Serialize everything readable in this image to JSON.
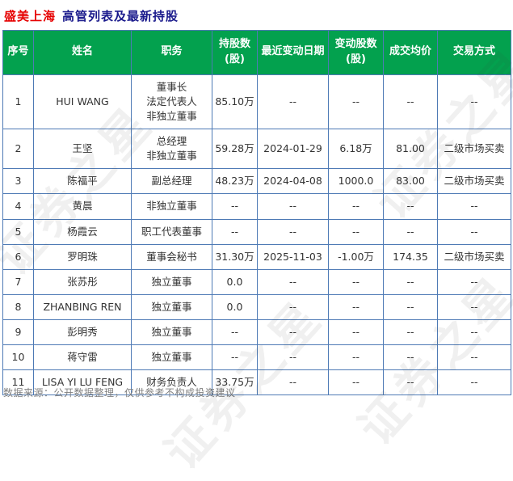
{
  "header": {
    "title_company": "盛美上海",
    "title_rest": "高管列表及最新持股"
  },
  "watermark": {
    "text": "证券之星"
  },
  "chart_data": {
    "type": "table",
    "title": "盛美上海 高管列表及最新持股",
    "columns": [
      "序号",
      "姓名",
      "职务",
      "持股数\n(股)",
      "最近变动日期",
      "变动股数\n(股)",
      "成交均价",
      "交易方式"
    ],
    "rows": [
      {
        "no": "1",
        "name": "HUI WANG",
        "position": "董事长\n法定代表人\n非独立董事",
        "shares": "85.10万",
        "date": "--",
        "change": "--",
        "change_color": "",
        "price": "--",
        "price_color": "",
        "method": "--"
      },
      {
        "no": "2",
        "name": "王坚",
        "position": "总经理\n非独立董事",
        "shares": "59.28万",
        "date": "2024-01-29",
        "change": "6.18万",
        "change_color": "red",
        "price": "81.00",
        "price_color": "red",
        "method": "二级市场买卖"
      },
      {
        "no": "3",
        "name": "陈福平",
        "position": "副总经理",
        "shares": "48.23万",
        "date": "2024-04-08",
        "change": "1000.0",
        "change_color": "red",
        "price": "83.00",
        "price_color": "red",
        "method": "二级市场买卖"
      },
      {
        "no": "4",
        "name": "黄晨",
        "position": "非独立董事",
        "shares": "--",
        "date": "--",
        "change": "--",
        "change_color": "",
        "price": "--",
        "price_color": "",
        "method": "--"
      },
      {
        "no": "5",
        "name": "杨霞云",
        "position": "职工代表董事",
        "shares": "--",
        "date": "--",
        "change": "--",
        "change_color": "",
        "price": "--",
        "price_color": "",
        "method": "--"
      },
      {
        "no": "6",
        "name": "罗明珠",
        "position": "董事会秘书",
        "shares": "31.30万",
        "date": "2025-11-03",
        "change": "-1.00万",
        "change_color": "green",
        "price": "174.35",
        "price_color": "green",
        "method": "二级市场买卖"
      },
      {
        "no": "7",
        "name": "张苏彤",
        "position": "独立董事",
        "shares": "0.0",
        "date": "--",
        "change": "--",
        "change_color": "",
        "price": "--",
        "price_color": "",
        "method": "--"
      },
      {
        "no": "8",
        "name": "ZHANBING REN",
        "position": "独立董事",
        "shares": "0.0",
        "date": "--",
        "change": "--",
        "change_color": "",
        "price": "--",
        "price_color": "",
        "method": "--"
      },
      {
        "no": "9",
        "name": "彭明秀",
        "position": "独立董事",
        "shares": "--",
        "date": "--",
        "change": "--",
        "change_color": "",
        "price": "--",
        "price_color": "",
        "method": "--"
      },
      {
        "no": "10",
        "name": "蒋守雷",
        "position": "独立董事",
        "shares": "--",
        "date": "--",
        "change": "--",
        "change_color": "",
        "price": "--",
        "price_color": "",
        "method": "--"
      },
      {
        "no": "11",
        "name": "LISA YI LU FENG",
        "position": "财务负责人",
        "shares": "33.75万",
        "date": "--",
        "change": "--",
        "change_color": "",
        "price": "--",
        "price_color": "",
        "method": "--"
      }
    ]
  },
  "footer": {
    "note": "数据来源：公开数据整理，仅供参考不构成投资建议"
  },
  "colors": {
    "positive_change": "#fe0000",
    "negative_change": "#009933",
    "header_background": "#03a14e",
    "table_border": "#4e7ab5",
    "title_company": "#e60000",
    "title_rest": "#1a1a8c"
  }
}
